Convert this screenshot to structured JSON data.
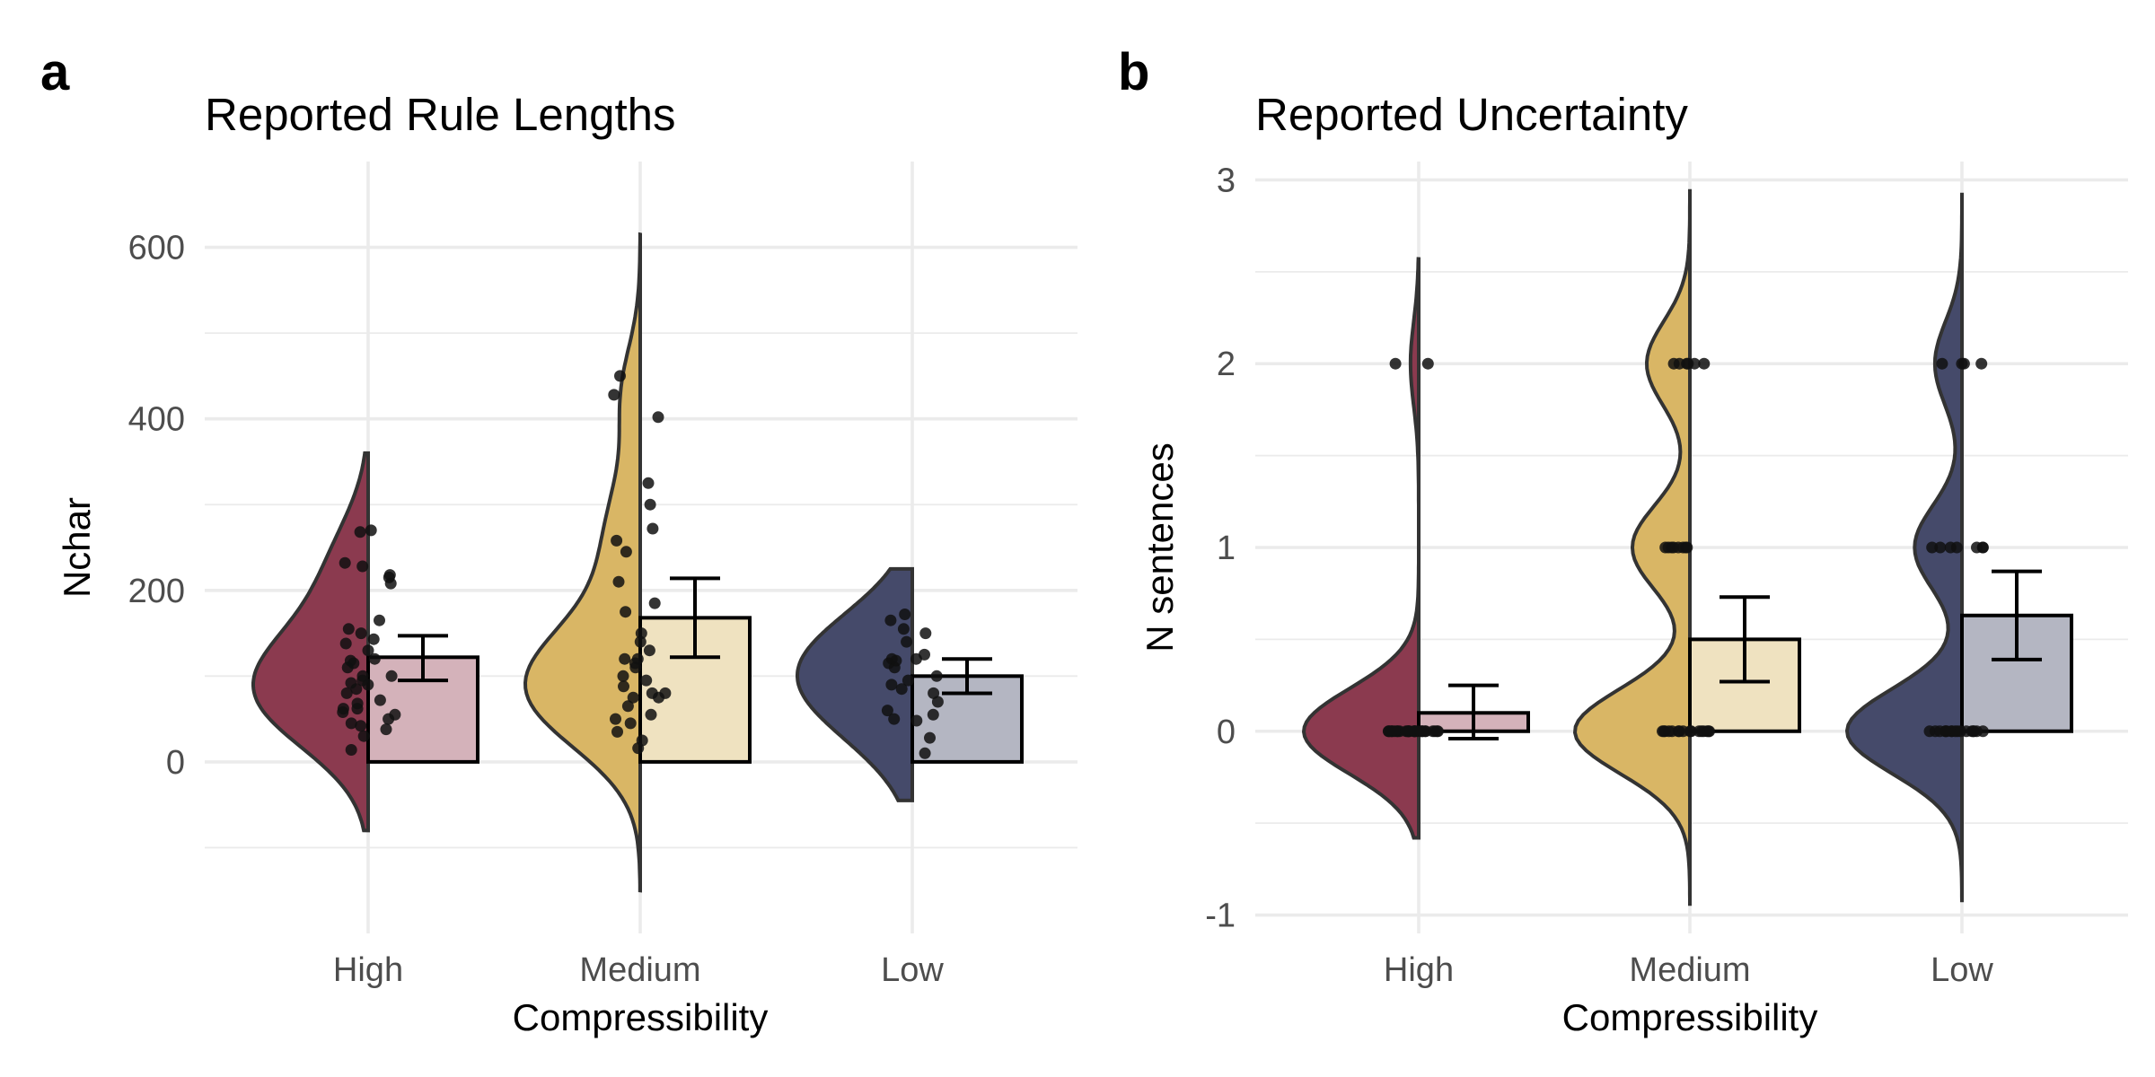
{
  "colors": {
    "High": "#8b3a4f",
    "Medium": "#d9b665",
    "Low": "#454a6a",
    "High_bar": "#d4b2ba",
    "Medium_bar": "#efe2c0",
    "Low_bar": "#b4b6c2",
    "outline": "#333333",
    "points": "#111111"
  },
  "chart_data": [
    {
      "panel_label": "a",
      "type": "bar",
      "title": "Reported Rule Lengths",
      "xlabel": "Compressibility",
      "ylabel": "Nchar",
      "categories": [
        "High",
        "Medium",
        "Low"
      ],
      "ylim": [
        -200,
        700
      ],
      "y_ticks": [
        0,
        200,
        400,
        600
      ],
      "y_tick_labels": [
        "0",
        "200",
        "400",
        "600"
      ],
      "grid": true,
      "bars": [
        {
          "category": "High",
          "mean": 122,
          "error_low": 95,
          "error_high": 147
        },
        {
          "category": "Medium",
          "mean": 168,
          "error_low": 122,
          "error_high": 214
        },
        {
          "category": "Low",
          "mean": 100,
          "error_low": 80,
          "error_high": 120
        }
      ],
      "points": {
        "High": [
          215,
          208,
          232,
          228,
          218,
          155,
          150,
          130,
          120,
          115,
          110,
          100,
          95,
          92,
          90,
          85,
          80,
          72,
          68,
          62,
          58,
          50,
          45,
          38,
          30,
          14,
          270,
          268,
          165,
          143,
          138,
          118,
          100,
          62,
          55,
          42
        ],
        "Medium": [
          450,
          402,
          272,
          258,
          245,
          210,
          185,
          175,
          150,
          130,
          120,
          110,
          100,
          95,
          88,
          80,
          75,
          65,
          55,
          45,
          35,
          25,
          16,
          428,
          325,
          300,
          140,
          120,
          115,
          80,
          75,
          50
        ],
        "Low": [
          172,
          150,
          140,
          125,
          120,
          115,
          110,
          100,
          95,
          90,
          85,
          80,
          70,
          60,
          55,
          50,
          48,
          28,
          165,
          155,
          120,
          118,
          10
        ]
      },
      "density_range": {
        "High": [
          -80,
          360
        ],
        "Medium": [
          -150,
          615
        ],
        "Low": [
          -45,
          225
        ]
      }
    },
    {
      "panel_label": "b",
      "type": "bar",
      "title": "Reported Uncertainty",
      "xlabel": "Compressibility",
      "ylabel": "N sentences",
      "categories": [
        "High",
        "Medium",
        "Low"
      ],
      "ylim": [
        -1.1,
        3.1
      ],
      "y_ticks": [
        -1,
        0,
        1,
        2,
        3
      ],
      "y_tick_labels": [
        "-1",
        "0",
        "1",
        "2",
        "3"
      ],
      "grid": true,
      "bars": [
        {
          "category": "High",
          "mean": 0.1,
          "error_low": -0.04,
          "error_high": 0.25
        },
        {
          "category": "Medium",
          "mean": 0.5,
          "error_low": 0.27,
          "error_high": 0.73
        },
        {
          "category": "Low",
          "mean": 0.63,
          "error_low": 0.39,
          "error_high": 0.87
        }
      ],
      "points": {
        "High": [
          2,
          2,
          0,
          0,
          0,
          0,
          0,
          0,
          0,
          0,
          0,
          0,
          0,
          0,
          0,
          0,
          0,
          0,
          0,
          0,
          0,
          0,
          0,
          0,
          0,
          0,
          0,
          0,
          0,
          0
        ],
        "Medium": [
          2,
          2,
          2,
          2,
          2,
          2,
          1,
          1,
          1,
          1,
          1,
          1,
          1,
          1,
          0,
          0,
          0,
          0,
          0,
          0,
          0,
          0,
          0,
          0,
          0,
          0,
          0,
          0,
          0,
          0
        ],
        "Low": [
          2,
          2,
          2,
          2,
          1,
          1,
          1,
          1,
          1,
          1,
          1,
          0,
          0,
          0,
          0,
          0,
          0,
          0,
          0,
          0,
          0,
          0,
          0,
          0,
          0,
          0,
          0,
          0
        ]
      },
      "density_range": {
        "High": [
          -0.58,
          2.57
        ],
        "Medium": [
          -0.95,
          2.95
        ],
        "Low": [
          -0.93,
          2.93
        ]
      }
    }
  ]
}
